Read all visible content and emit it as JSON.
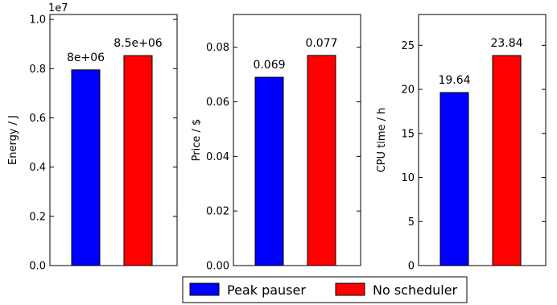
{
  "legend": {
    "items": [
      {
        "label": "Peak pauser",
        "color": "#0000ff"
      },
      {
        "label": "No scheduler",
        "color": "#ff0000"
      }
    ]
  },
  "chart_data": [
    {
      "type": "bar",
      "ylabel": "Energy / J",
      "multiplier_label": "1e7",
      "ylim": [
        0,
        1.02
      ],
      "yticks": [
        0.0,
        0.2,
        0.4,
        0.6,
        0.8,
        1.0
      ],
      "ytick_labels": [
        "0.0",
        "0.2",
        "0.4",
        "0.6",
        "0.8",
        "1.0"
      ],
      "grid": false,
      "categories": [
        "Peak pauser",
        "No scheduler"
      ],
      "values": [
        0.795,
        0.853
      ],
      "value_labels": [
        "8e+06",
        "8.5e+06"
      ],
      "colors": [
        "#0000ff",
        "#ff0000"
      ]
    },
    {
      "type": "bar",
      "ylabel": "Price / $",
      "ylim": [
        0,
        0.092
      ],
      "yticks": [
        0.0,
        0.02,
        0.04,
        0.06,
        0.08
      ],
      "ytick_labels": [
        "0.00",
        "0.02",
        "0.04",
        "0.06",
        "0.08"
      ],
      "grid": false,
      "categories": [
        "Peak pauser",
        "No scheduler"
      ],
      "values": [
        0.069,
        0.077
      ],
      "value_labels": [
        "0.069",
        "0.077"
      ],
      "colors": [
        "#0000ff",
        "#ff0000"
      ]
    },
    {
      "type": "bar",
      "ylabel": "CPU time / h",
      "ylim": [
        0,
        28.5
      ],
      "yticks": [
        0,
        5,
        10,
        15,
        20,
        25
      ],
      "ytick_labels": [
        "0",
        "5",
        "10",
        "15",
        "20",
        "25"
      ],
      "grid": false,
      "categories": [
        "Peak pauser",
        "No scheduler"
      ],
      "values": [
        19.64,
        23.84
      ],
      "value_labels": [
        "19.64",
        "23.84"
      ],
      "colors": [
        "#0000ff",
        "#ff0000"
      ]
    }
  ]
}
